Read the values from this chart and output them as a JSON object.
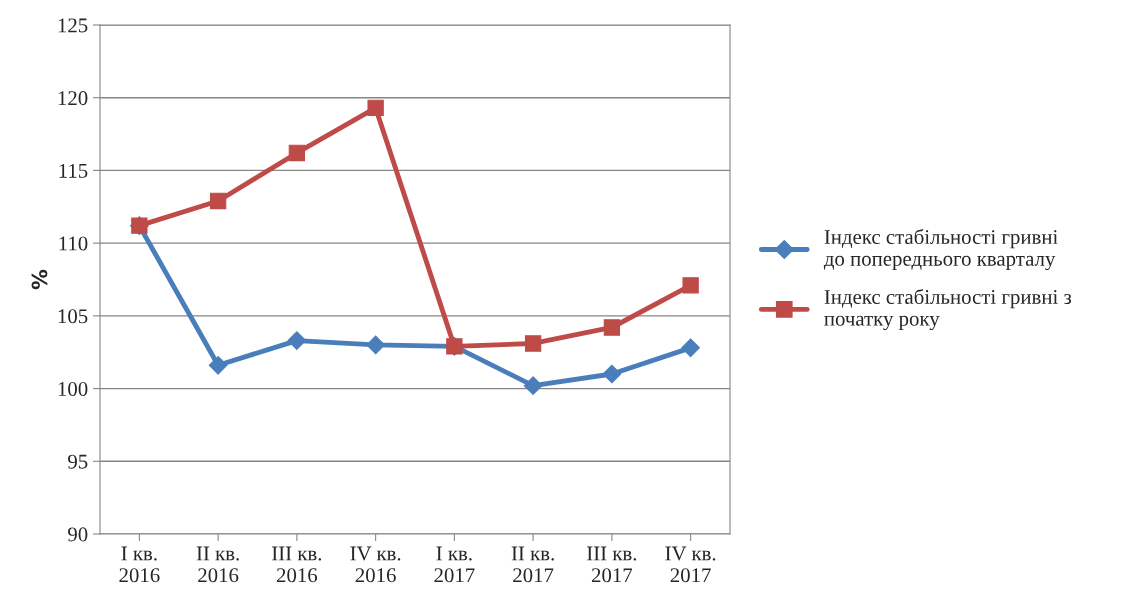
{
  "chart_data": {
    "type": "line",
    "ylabel": "%",
    "categories": [
      "I кв.\n2016",
      "II кв.\n2016",
      "III кв.\n2016",
      "IV кв.\n2016",
      "I кв.\n2017",
      "II кв.\n2017",
      "III кв.\n2017",
      "IV кв.\n2017"
    ],
    "series": [
      {
        "name": "Індекс стабільності гривні\nдо попереднього кварталу",
        "color": "#4a7ebb",
        "marker": "diamond",
        "values": [
          111.2,
          101.6,
          103.3,
          103.0,
          102.9,
          100.2,
          101.0,
          102.8
        ]
      },
      {
        "name": "Індекс стабільності гривні з\nпочатку року",
        "color": "#be4b48",
        "marker": "square",
        "values": [
          111.2,
          112.9,
          116.2,
          119.3,
          102.9,
          103.1,
          104.2,
          107.1
        ]
      }
    ],
    "ylim": [
      90,
      125
    ],
    "yticks": [
      90,
      95,
      100,
      105,
      110,
      115,
      120,
      125
    ],
    "grid": "y",
    "legend": "right",
    "line_style": "solid"
  }
}
